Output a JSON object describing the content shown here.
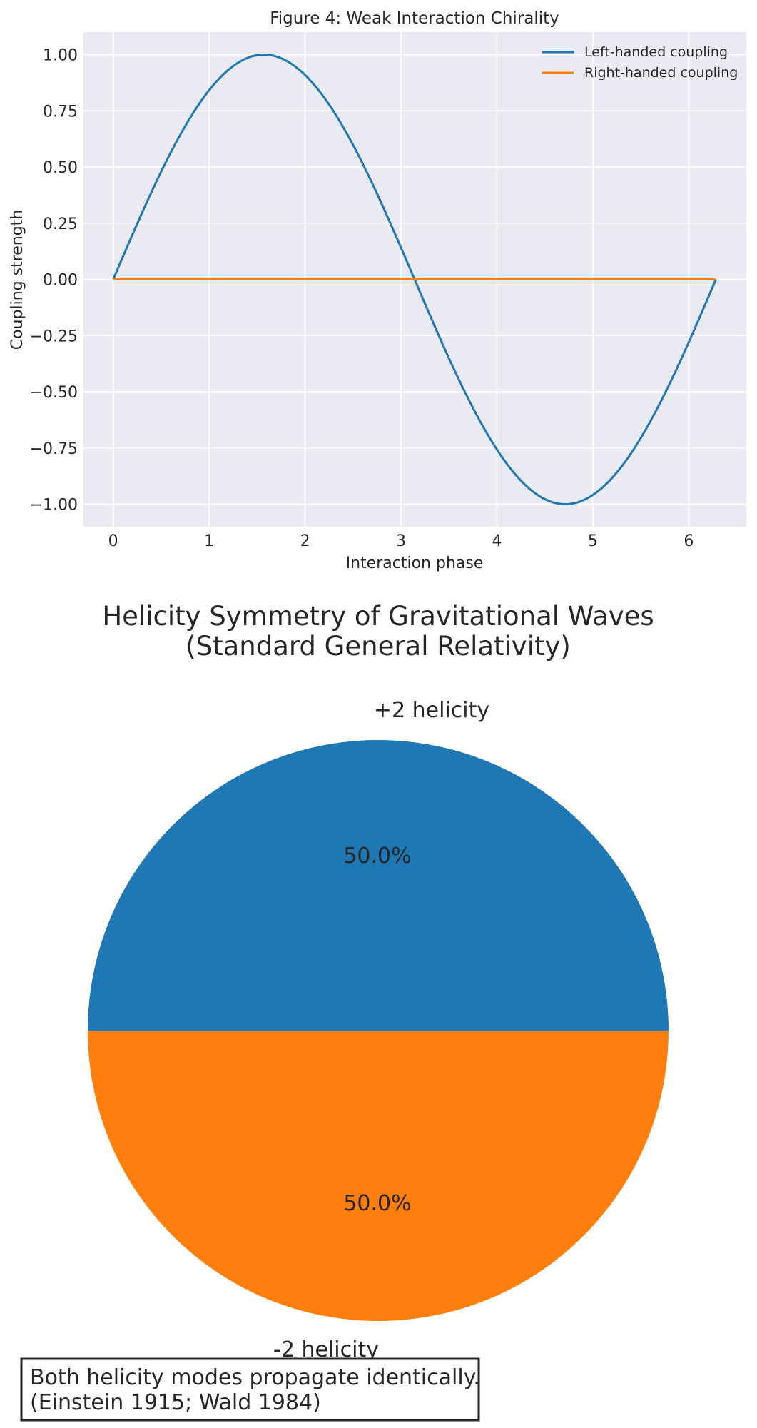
{
  "chart_data": [
    {
      "type": "line",
      "title": "Figure 4: Weak Interaction Chirality",
      "xlabel": "Interaction phase",
      "ylabel": "Coupling strength",
      "xlim": [
        -0.31,
        6.6
      ],
      "ylim": [
        -1.1,
        1.1
      ],
      "xticks": [
        0,
        1,
        2,
        3,
        4,
        5,
        6
      ],
      "yticks": [
        1.0,
        0.75,
        0.5,
        0.25,
        0.0,
        -0.25,
        -0.5,
        -0.75,
        -1.0
      ],
      "ytick_labels": [
        "1.00",
        "0.75",
        "0.50",
        "0.25",
        "0.00",
        "−0.25",
        "−0.50",
        "−0.75",
        "−1.00"
      ],
      "grid": true,
      "legend_position": "top-right",
      "series": [
        {
          "name": "Left-handed coupling",
          "color": "#1f77b4",
          "x": [
            0,
            0.3142,
            0.6283,
            0.9425,
            1.2566,
            1.5708,
            1.885,
            2.1991,
            2.5133,
            2.8274,
            3.1416,
            3.4558,
            3.7699,
            4.0841,
            4.3982,
            4.7124,
            5.0265,
            5.3407,
            5.6549,
            5.969,
            6.2832
          ],
          "y": [
            0,
            0.309,
            0.5878,
            0.809,
            0.9511,
            1.0,
            0.9511,
            0.809,
            0.5878,
            0.309,
            0,
            -0.309,
            -0.5878,
            -0.809,
            -0.9511,
            -1.0,
            -0.9511,
            -0.809,
            -0.5878,
            -0.309,
            0
          ]
        },
        {
          "name": "Right-handed coupling",
          "color": "#ff7f0e",
          "x": [
            0,
            6.2832
          ],
          "y": [
            0,
            0
          ]
        }
      ]
    },
    {
      "type": "pie",
      "title_lines": [
        "Helicity Symmetry of Gravitational Waves",
        "(Standard General Relativity)"
      ],
      "labels": [
        "+2 helicity",
        "-2 helicity"
      ],
      "values": [
        50.0,
        50.0
      ],
      "percent_labels": [
        "50.0%",
        "50.0%"
      ],
      "colors": [
        "#1f77b4",
        "#ff7f0e"
      ],
      "annotation_lines": [
        "Both helicity modes propagate identically.",
        "(Einstein 1915; Wald 1984)"
      ]
    }
  ]
}
